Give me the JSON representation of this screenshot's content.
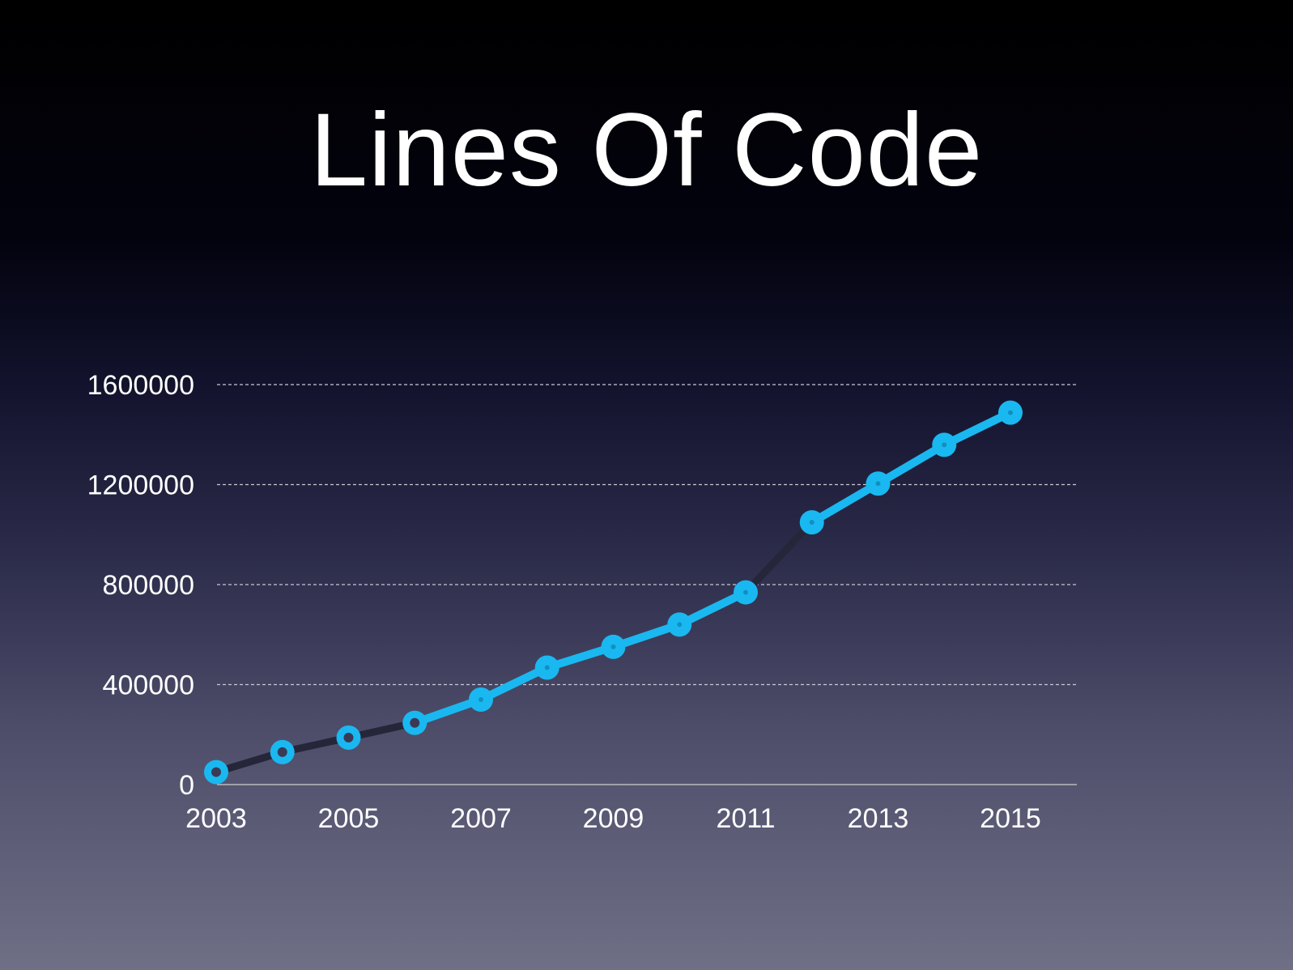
{
  "chart_data": {
    "type": "line",
    "title": "Lines Of Code",
    "xlabel": "",
    "ylabel": "",
    "x": [
      2003,
      2004,
      2005,
      2006,
      2007,
      2008,
      2009,
      2010,
      2011,
      2012,
      2013,
      2014,
      2015
    ],
    "series": [
      {
        "name": "Lines Of Code",
        "values": [
          50000,
          130000,
          188000,
          247000,
          340000,
          468000,
          551000,
          640000,
          769000,
          1049000,
          1204000,
          1359000,
          1488000
        ]
      }
    ],
    "ylim": [
      0,
      1600000
    ],
    "yticks": [
      "0",
      "400000",
      "800000",
      "1200000",
      "1600000"
    ],
    "xticks": [
      "2003",
      "2005",
      "2007",
      "2009",
      "2011",
      "2013",
      "2015"
    ],
    "grid": true,
    "legend": "none",
    "colors": {
      "line": "#1ab8f0",
      "shadow": "#26263a",
      "grid": "#c8c8d4",
      "axis": "#a0a0aa"
    }
  }
}
